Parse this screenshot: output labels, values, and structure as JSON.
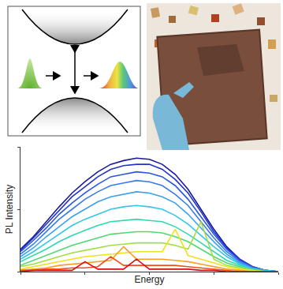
{
  "chart_data": {
    "type": "line",
    "xlabel": "Energy",
    "ylabel": "PL Intensity",
    "x": [
      0,
      5,
      10,
      15,
      20,
      25,
      30,
      35,
      40,
      45,
      50,
      55,
      60,
      65,
      70,
      75,
      80,
      85,
      90,
      95,
      100
    ],
    "xlim": [
      0,
      100
    ],
    "ylim": [
      0,
      100
    ],
    "xticks": [
      0,
      25,
      50,
      75,
      100
    ],
    "yticks": [
      0,
      50,
      100
    ],
    "tick_labels": false,
    "grid": false,
    "series": [
      {
        "color": "#1a1a9c",
        "values": [
          18,
          28,
          40,
          52,
          63,
          72,
          80,
          86,
          89,
          91,
          90,
          86,
          78,
          66,
          50,
          34,
          20,
          10,
          4,
          1,
          0
        ]
      },
      {
        "color": "#2233c8",
        "values": [
          17,
          27,
          38,
          49,
          60,
          68,
          76,
          82,
          85,
          86,
          86,
          82,
          74,
          63,
          48,
          32,
          19,
          10,
          4,
          1,
          0
        ]
      },
      {
        "color": "#2a55e0",
        "values": [
          16,
          25,
          35,
          46,
          55,
          63,
          70,
          76,
          78,
          80,
          79,
          76,
          69,
          58,
          44,
          30,
          18,
          9,
          4,
          1,
          0
        ]
      },
      {
        "color": "#3a7ae8",
        "values": [
          14,
          22,
          32,
          42,
          50,
          58,
          64,
          69,
          71,
          73,
          72,
          69,
          62,
          53,
          40,
          27,
          16,
          8,
          3,
          1,
          0
        ]
      },
      {
        "color": "#3aa0f0",
        "values": [
          12,
          19,
          28,
          36,
          44,
          50,
          56,
          60,
          62,
          64,
          63,
          60,
          55,
          46,
          35,
          24,
          14,
          7,
          3,
          1,
          0
        ]
      },
      {
        "color": "#30c8e8",
        "values": [
          10,
          16,
          23,
          30,
          37,
          42,
          46,
          50,
          52,
          53,
          52,
          50,
          45,
          38,
          29,
          20,
          12,
          6,
          2,
          1,
          0
        ]
      },
      {
        "color": "#30d8b0",
        "values": [
          8,
          13,
          18,
          24,
          29,
          33,
          37,
          40,
          41,
          42,
          41,
          40,
          36,
          30,
          23,
          16,
          9,
          5,
          2,
          0,
          0
        ]
      },
      {
        "color": "#50d870",
        "values": [
          5,
          9,
          13,
          17,
          21,
          24,
          27,
          30,
          31,
          32,
          32,
          31,
          28,
          24,
          18,
          12,
          7,
          4,
          1,
          0,
          0
        ]
      },
      {
        "color": "#a0e040",
        "values": [
          4,
          6,
          9,
          12,
          15,
          17,
          19,
          21,
          22,
          23,
          23,
          23,
          21,
          18,
          40,
          10,
          5,
          3,
          1,
          0,
          0
        ]
      },
      {
        "color": "#f0e020",
        "values": [
          2,
          4,
          6,
          8,
          10,
          12,
          13,
          14,
          15,
          16,
          16,
          16,
          34,
          13,
          10,
          7,
          4,
          2,
          1,
          0,
          0
        ]
      },
      {
        "color": "#f8a020",
        "values": [
          1,
          2,
          3,
          5,
          6,
          7,
          8,
          9,
          20,
          10,
          10,
          10,
          9,
          8,
          6,
          4,
          2,
          1,
          0,
          0,
          0
        ]
      },
      {
        "color": "#f05020",
        "values": [
          1,
          1,
          2,
          2,
          3,
          3,
          4,
          12,
          5,
          5,
          5,
          5,
          5,
          4,
          3,
          2,
          1,
          0,
          0,
          0,
          0
        ]
      },
      {
        "color": "#d01010",
        "values": [
          0,
          1,
          1,
          1,
          1,
          8,
          2,
          2,
          2,
          10,
          2,
          2,
          2,
          2,
          1,
          1,
          0,
          0,
          0,
          0,
          0
        ]
      }
    ]
  }
}
